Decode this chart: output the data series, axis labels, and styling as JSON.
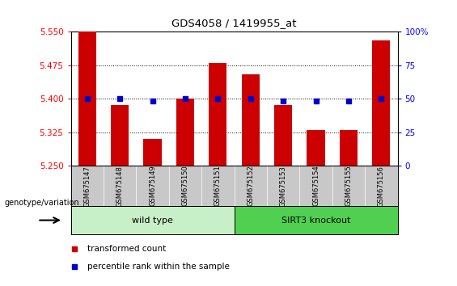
{
  "title": "GDS4058 / 1419955_at",
  "categories": [
    "GSM675147",
    "GSM675148",
    "GSM675149",
    "GSM675150",
    "GSM675151",
    "GSM675152",
    "GSM675153",
    "GSM675154",
    "GSM675155",
    "GSM675156"
  ],
  "transformed_count": [
    5.55,
    5.385,
    5.31,
    5.4,
    5.48,
    5.455,
    5.385,
    5.33,
    5.33,
    5.53
  ],
  "percentile_rank": [
    50,
    50,
    48,
    50,
    50,
    50,
    48,
    48,
    48,
    50
  ],
  "ylim_left": [
    5.25,
    5.55
  ],
  "ylim_right": [
    0,
    100
  ],
  "yticks_left": [
    5.25,
    5.325,
    5.4,
    5.475,
    5.55
  ],
  "yticks_right": [
    0,
    25,
    50,
    75,
    100
  ],
  "ytick_right_labels": [
    "0",
    "25",
    "50",
    "75",
    "100%"
  ],
  "bar_color": "#cc0000",
  "dot_color": "#0000cc",
  "grid_color": "#000000",
  "bg_color": "#ffffff",
  "tick_area_bg": "#c8c8c8",
  "wild_type_color": "#c8f0c8",
  "knockout_color": "#50d050",
  "wild_type_label": "wild type",
  "knockout_label": "SIRT3 knockout",
  "genotype_label": "genotype/variation",
  "legend_bar": "transformed count",
  "legend_dot": "percentile rank within the sample",
  "bar_bottom": 5.25,
  "bar_width": 0.55,
  "figsize": [
    5.65,
    3.54
  ],
  "dpi": 100
}
